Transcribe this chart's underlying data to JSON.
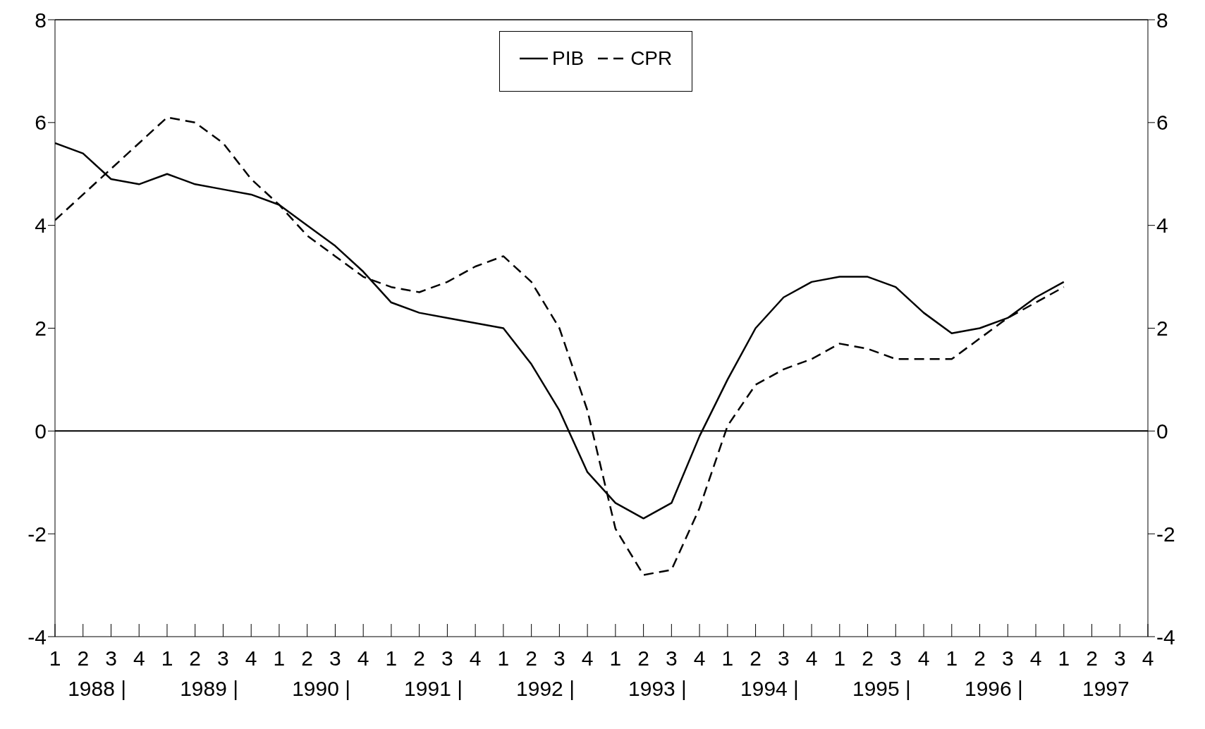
{
  "chart_data": {
    "type": "line",
    "categories": [
      "1",
      "2",
      "3",
      "4",
      "1",
      "2",
      "3",
      "4",
      "1",
      "2",
      "3",
      "4",
      "1",
      "2",
      "3",
      "4",
      "1",
      "2",
      "3",
      "4",
      "1",
      "2",
      "3",
      "4",
      "1",
      "2",
      "3",
      "4",
      "1",
      "2",
      "3",
      "4",
      "1",
      "2",
      "3",
      "4",
      "1",
      "2",
      "3",
      "4"
    ],
    "series": [
      {
        "name": "PIB",
        "color": "#000000",
        "line_style": "solid",
        "values": [
          5.6,
          5.4,
          4.9,
          4.8,
          5.0,
          4.8,
          4.7,
          4.6,
          4.4,
          4.0,
          3.6,
          3.1,
          2.5,
          2.3,
          2.2,
          2.1,
          2.0,
          1.3,
          0.4,
          -0.8,
          -1.4,
          -1.7,
          -1.4,
          -0.1,
          1.0,
          2.0,
          2.6,
          2.9,
          3.0,
          3.0,
          2.8,
          2.3,
          1.9,
          2.0,
          2.2,
          2.6,
          2.9,
          null,
          null,
          null
        ]
      },
      {
        "name": "CPR",
        "color": "#000000",
        "line_style": "dashed",
        "values": [
          4.1,
          4.6,
          5.1,
          5.6,
          6.1,
          6.0,
          5.6,
          4.9,
          4.4,
          3.8,
          3.4,
          3.0,
          2.8,
          2.7,
          2.9,
          3.2,
          3.4,
          2.9,
          2.0,
          0.4,
          -1.9,
          -2.8,
          -2.7,
          -1.5,
          0.1,
          0.9,
          1.2,
          1.4,
          1.7,
          1.6,
          1.4,
          1.4,
          1.4,
          1.8,
          2.2,
          2.5,
          2.8,
          null,
          null,
          null
        ]
      }
    ],
    "ylim": [
      -4,
      8
    ],
    "yticks": [
      -4,
      -2,
      0,
      2,
      4,
      6,
      8
    ],
    "y2lim": [
      -4,
      8
    ],
    "y2ticks": [
      -4,
      -2,
      0,
      2,
      4,
      6,
      8
    ],
    "ref_lines": [
      {
        "axis": "y",
        "value": 0,
        "color": "#000000"
      }
    ],
    "annotations": [
      "1988 |",
      "1989 |",
      "1990 |",
      "1991 |",
      "1992 |",
      "1993 |",
      "1994 |",
      "1995 |",
      "1996 |",
      "1997"
    ],
    "legend": "top"
  }
}
